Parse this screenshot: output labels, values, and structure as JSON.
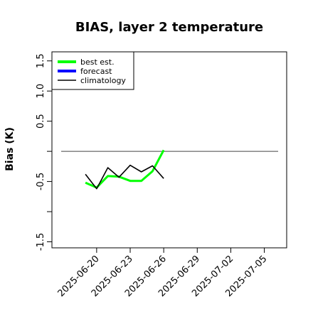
{
  "chart_data": {
    "type": "line",
    "title": "BIAS, layer 2 temperature",
    "xlabel": "",
    "ylabel": "Bias (K)",
    "x_ticks": [
      "2025-06-20",
      "2025-06-23",
      "2025-06-26",
      "2025-06-29",
      "2025-07-02",
      "2025-07-05"
    ],
    "highlight_tick": "2025-06-26",
    "highlight_color": "#228b22",
    "xlim": [
      "2025-06-16",
      "2025-07-07"
    ],
    "y_ticks": [
      -1.5,
      -1.0,
      -0.5,
      0.0,
      0.5,
      1.0,
      1.5
    ],
    "y_tick_labels": [
      "-1.5",
      "",
      "-0.5",
      "",
      "0.5",
      "1.0",
      "1.5"
    ],
    "ylim": [
      -1.6,
      1.65
    ],
    "zero_line": 0.0,
    "grid": false,
    "legend_position": "top-left",
    "series": [
      {
        "name": "best est.",
        "color": "#00ff00",
        "x": [
          "2025-06-19",
          "2025-06-20",
          "2025-06-21",
          "2025-06-22",
          "2025-06-23",
          "2025-06-24",
          "2025-06-25",
          "2025-06-26"
        ],
        "values": [
          -0.52,
          -0.6,
          -0.41,
          -0.42,
          -0.49,
          -0.49,
          -0.33,
          0.02
        ]
      },
      {
        "name": "forecast",
        "color": "#0000ff",
        "x": [],
        "values": []
      },
      {
        "name": "climatology",
        "color": "#000000",
        "x": [
          "2025-06-19",
          "2025-06-20",
          "2025-06-21",
          "2025-06-22",
          "2025-06-23",
          "2025-06-24",
          "2025-06-25",
          "2025-06-26"
        ],
        "values": [
          -0.38,
          -0.62,
          -0.27,
          -0.43,
          -0.23,
          -0.34,
          -0.24,
          -0.45
        ]
      }
    ]
  }
}
